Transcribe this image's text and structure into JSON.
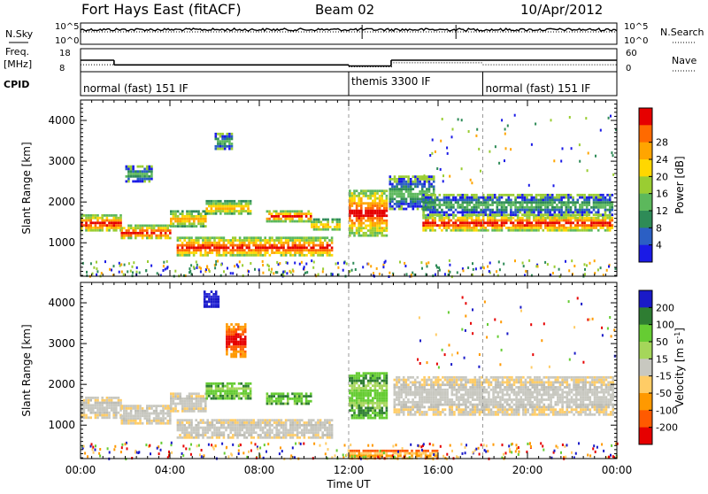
{
  "header": {
    "station": "Fort Hays East (fitACF)",
    "beam": "Beam 02",
    "date": "10/Apr/2012"
  },
  "status_panels": {
    "left_labels": {
      "nsky": "N.Sky",
      "freq": "Freq.",
      "freq_unit": "[MHz]",
      "cpid": "CPID"
    },
    "right_labels": {
      "nsearch": "N.Search",
      "nave": "Nave"
    },
    "noise_scale": {
      "top": "10^5",
      "bottom": "10^0"
    },
    "freq_scale": {
      "top": "18",
      "bottom": "8"
    },
    "nave_scale": {
      "top": "60",
      "bottom": "0"
    },
    "cpid_segments": [
      {
        "label": "normal (fast) 151 IF",
        "start_hr": 0,
        "end_hr": 12
      },
      {
        "label": "themis 3300 IF",
        "start_hr": 12,
        "end_hr": 18
      },
      {
        "label": "normal (fast) 151 IF",
        "start_hr": 18,
        "end_hr": 24
      }
    ],
    "freq_series": [
      {
        "start_hr": 0,
        "end_hr": 1.5,
        "mhz": 13.0
      },
      {
        "start_hr": 1.5,
        "end_hr": 12.0,
        "mhz": 10.6
      },
      {
        "start_hr": 12.0,
        "end_hr": 13.9,
        "mhz": 10.0
      },
      {
        "start_hr": 13.9,
        "end_hr": 24.0,
        "mhz": 13.0
      }
    ],
    "nave_series": [
      {
        "start_hr": 0,
        "end_hr": 12,
        "value": 16
      },
      {
        "start_hr": 12,
        "end_hr": 14,
        "value": 10
      },
      {
        "start_hr": 14,
        "end_hr": 18,
        "value": 22
      },
      {
        "start_hr": 18,
        "end_hr": 24,
        "value": 16
      }
    ]
  },
  "chart_data": [
    {
      "type": "heatmap",
      "quantity": "power",
      "ylabel": "Slant Range [km]",
      "yticks": [
        1000,
        2000,
        3000,
        4000
      ],
      "ylim": [
        180,
        4500
      ],
      "xlim": [
        0,
        24
      ],
      "dashed_verticals_hr": [
        12,
        18
      ],
      "colorbar": {
        "label": "Power [dB]",
        "ticks": [
          "4",
          "8",
          "12",
          "16",
          "20",
          "24",
          "28"
        ],
        "colors": [
          "#1a1ae6",
          "#2b5fc4",
          "#2e8b57",
          "#5cb85c",
          "#9acd32",
          "#ffd700",
          "#ffa500",
          "#ff6a00",
          "#e60000"
        ]
      },
      "bands": [
        {
          "t0": 0.0,
          "t1": 1.8,
          "r0": 1300,
          "r1": 1700,
          "level": "high"
        },
        {
          "t0": 1.8,
          "t1": 4.0,
          "r0": 1100,
          "r1": 1450,
          "level": "high"
        },
        {
          "t0": 4.0,
          "t1": 5.6,
          "r0": 1400,
          "r1": 1800,
          "level": "mid"
        },
        {
          "t0": 4.3,
          "t1": 11.2,
          "r0": 680,
          "r1": 1150,
          "level": "high"
        },
        {
          "t0": 5.6,
          "t1": 7.6,
          "r0": 1700,
          "r1": 2050,
          "level": "mid"
        },
        {
          "t0": 8.3,
          "t1": 10.3,
          "r0": 1550,
          "r1": 1800,
          "level": "high"
        },
        {
          "t0": 10.3,
          "t1": 11.6,
          "r0": 1300,
          "r1": 1600,
          "level": "mid"
        },
        {
          "t0": 12.0,
          "t1": 13.7,
          "r0": 1200,
          "r1": 2300,
          "level": "high"
        },
        {
          "t0": 13.8,
          "t1": 15.8,
          "r0": 1800,
          "r1": 2650,
          "level": "low"
        },
        {
          "t0": 15.3,
          "t1": 23.8,
          "r0": 1300,
          "r1": 1700,
          "level": "high"
        },
        {
          "t0": 15.3,
          "t1": 23.8,
          "r0": 1700,
          "r1": 2200,
          "level": "low"
        },
        {
          "t0": 6.0,
          "t1": 6.8,
          "r0": 3300,
          "r1": 3700,
          "level": "low"
        },
        {
          "t0": 2.0,
          "t1": 3.2,
          "r0": 2500,
          "r1": 2900,
          "level": "low"
        }
      ]
    },
    {
      "type": "heatmap",
      "quantity": "velocity",
      "xlabel": "Time UT",
      "ylabel": "Slant Range [km]",
      "xticks": [
        "00:00",
        "04:00",
        "08:00",
        "12:00",
        "16:00",
        "20:00",
        "00:00"
      ],
      "yticks": [
        1000,
        2000,
        3000,
        4000
      ],
      "ylim": [
        180,
        4500
      ],
      "xlim": [
        0,
        24
      ],
      "dashed_verticals_hr": [
        12,
        18
      ],
      "colorbar": {
        "label": "Velocity [m s^-1]",
        "ticks": [
          "200",
          "100",
          "50",
          "15",
          "-15",
          "-50",
          "-100",
          "-200"
        ],
        "colors": [
          "#1a1ac8",
          "#2e7d32",
          "#66cc33",
          "#a5d65a",
          "#c8c8c0",
          "#ffcc66",
          "#ff9900",
          "#ff5a00",
          "#e60000"
        ]
      },
      "bands": [
        {
          "t0": 0.0,
          "t1": 1.8,
          "r0": 1200,
          "r1": 1700,
          "level": "gray"
        },
        {
          "t0": 1.8,
          "t1": 4.0,
          "r0": 1050,
          "r1": 1500,
          "level": "gray"
        },
        {
          "t0": 4.0,
          "t1": 5.6,
          "r0": 1350,
          "r1": 1800,
          "level": "gray"
        },
        {
          "t0": 4.3,
          "t1": 11.2,
          "r0": 680,
          "r1": 1150,
          "level": "gray"
        },
        {
          "t0": 5.6,
          "t1": 7.6,
          "r0": 1650,
          "r1": 2050,
          "level": "green"
        },
        {
          "t0": 8.3,
          "t1": 10.3,
          "r0": 1500,
          "r1": 1800,
          "level": "green"
        },
        {
          "t0": 12.0,
          "t1": 13.7,
          "r0": 1200,
          "r1": 2300,
          "level": "green"
        },
        {
          "t0": 14.0,
          "t1": 23.8,
          "r0": 1250,
          "r1": 2200,
          "level": "gray"
        },
        {
          "t0": 5.5,
          "t1": 6.2,
          "r0": 3900,
          "r1": 4300,
          "level": "blue"
        },
        {
          "t0": 6.5,
          "t1": 7.4,
          "r0": 2700,
          "r1": 3500,
          "level": "red"
        },
        {
          "t0": 12.0,
          "t1": 16.0,
          "r0": 180,
          "r1": 400,
          "level": "orange"
        }
      ]
    }
  ]
}
